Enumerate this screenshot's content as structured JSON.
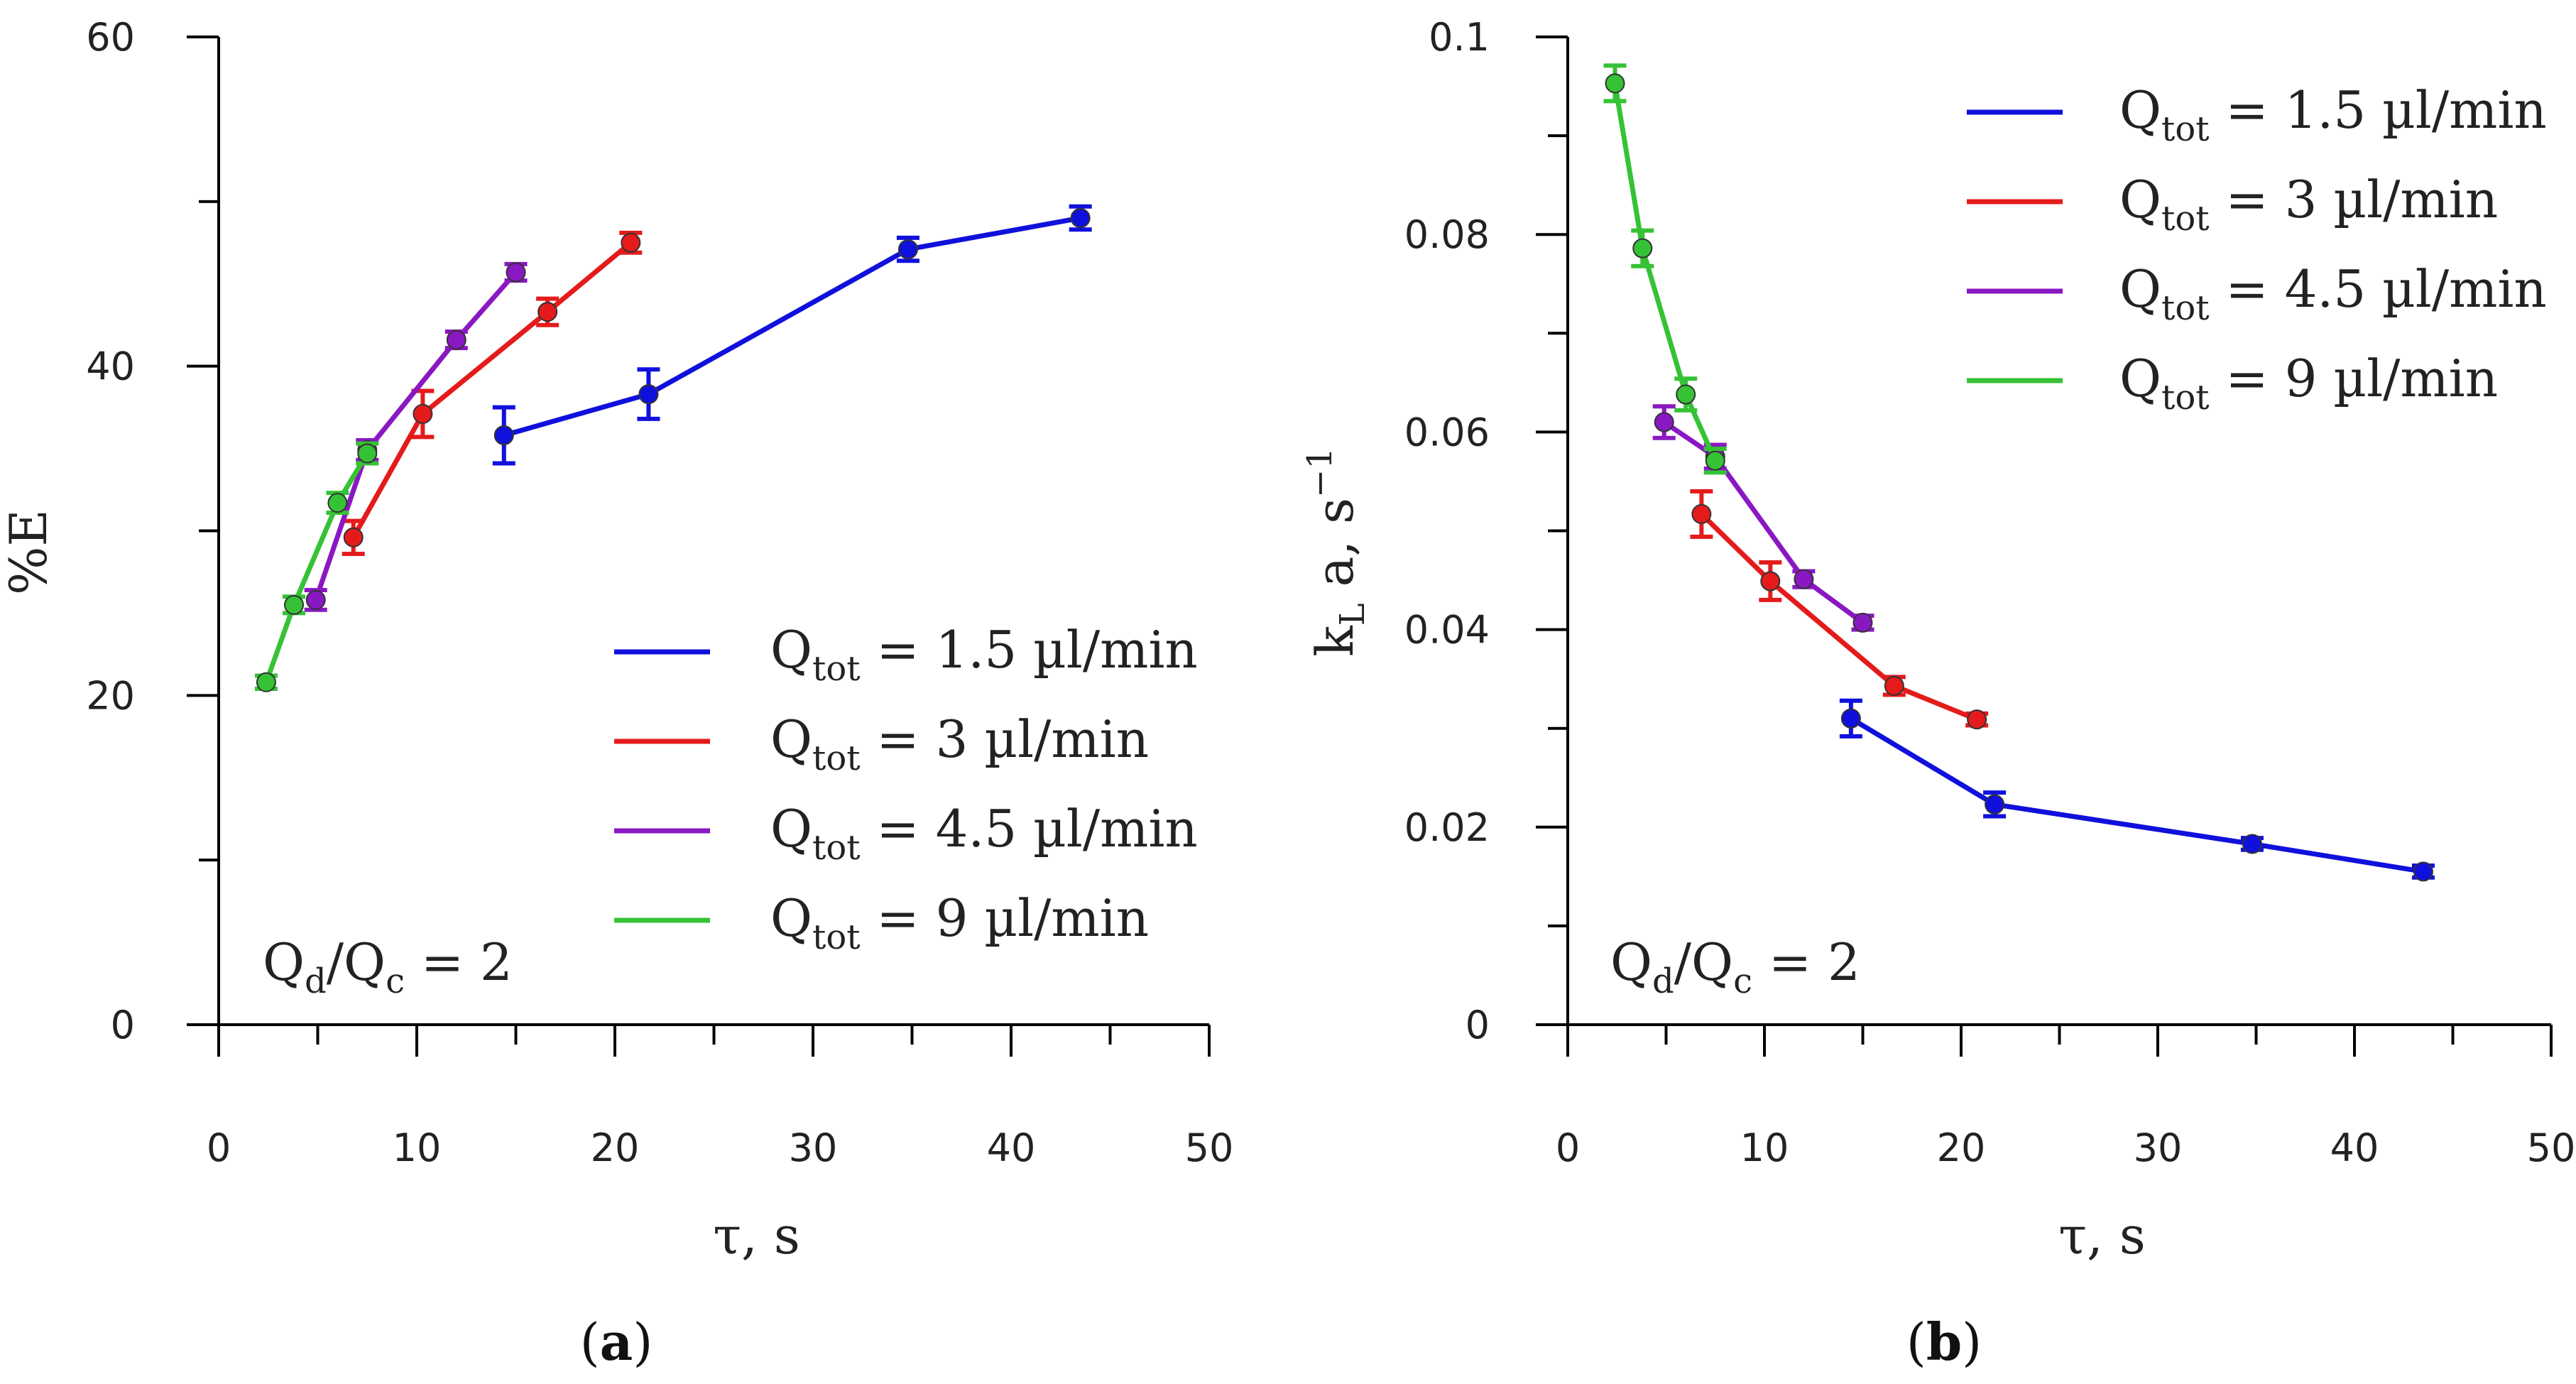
{
  "colors": {
    "blue": "#1010dd",
    "red": "#e51b1b",
    "purple": "#8a18c2",
    "green": "#35c235",
    "axis": "#000000"
  },
  "chart_data": [
    {
      "type": "line",
      "panel_label": "a",
      "xlabel": "τ, s",
      "ylabel": "%E",
      "xlim": [
        0,
        50
      ],
      "ylim": [
        0,
        60
      ],
      "x_ticks": [
        0,
        10,
        20,
        30,
        40,
        50
      ],
      "x_tick_labels": [
        "0",
        "10",
        "20",
        "30",
        "40",
        "50"
      ],
      "y_ticks": [
        0,
        20,
        40,
        60
      ],
      "y_tick_labels": [
        "0",
        "20",
        "40",
        "60"
      ],
      "annotation": {
        "main": "Q",
        "sub1": "d",
        "mid": "/Q",
        "sub2": "c",
        "tail": " = 2"
      },
      "legend_position": "bottom-right",
      "series": [
        {
          "name": "Qtot = 1.5 µl/min",
          "legend": {
            "q": "Q",
            "sub": "tot",
            "rest": " = 1.5 µl/min"
          },
          "color_key": "blue",
          "x": [
            14.4,
            21.7,
            34.8,
            43.5
          ],
          "y": [
            35.8,
            38.3,
            47.1,
            49.0
          ],
          "err": [
            1.7,
            1.5,
            0.7,
            0.7
          ]
        },
        {
          "name": "Qtot = 3 µl/min",
          "legend": {
            "q": "Q",
            "sub": "tot",
            "rest": " = 3 µl/min"
          },
          "color_key": "red",
          "x": [
            6.8,
            10.3,
            16.6,
            20.8
          ],
          "y": [
            29.6,
            37.1,
            43.3,
            47.5
          ],
          "err": [
            1.0,
            1.4,
            0.8,
            0.6
          ]
        },
        {
          "name": "Qtot = 4.5 µl/min",
          "legend": {
            "q": "Q",
            "sub": "tot",
            "rest": " = 4.5 µl/min"
          },
          "color_key": "purple",
          "x": [
            4.9,
            7.5,
            12.0,
            15.0
          ],
          "y": [
            25.8,
            34.9,
            41.6,
            45.7
          ],
          "err": [
            0.6,
            0.6,
            0.5,
            0.5
          ]
        },
        {
          "name": "Qtot = 9 µl/min",
          "legend": {
            "q": "Q",
            "sub": "tot",
            "rest": " = 9 µl/min"
          },
          "color_key": "green",
          "x": [
            2.4,
            3.8,
            6.0,
            7.5
          ],
          "y": [
            20.8,
            25.5,
            31.7,
            34.7
          ],
          "err": [
            0.4,
            0.5,
            0.6,
            0.6
          ]
        }
      ]
    },
    {
      "type": "line",
      "panel_label": "b",
      "xlabel": "τ, s",
      "ylabel": {
        "main": "k",
        "sub": "L",
        "mid": " a, s",
        "sup": "−1"
      },
      "xlim": [
        0,
        50
      ],
      "ylim": [
        0,
        0.1
      ],
      "x_ticks": [
        0,
        10,
        20,
        30,
        40,
        50
      ],
      "x_tick_labels": [
        "0",
        "10",
        "20",
        "30",
        "40",
        "50"
      ],
      "y_ticks": [
        0,
        0.02,
        0.04,
        0.06,
        0.08,
        0.1
      ],
      "y_tick_labels": [
        "0",
        "0.02",
        "0.04",
        "0.06",
        "0.08",
        "0.1"
      ],
      "annotation": {
        "main": "Q",
        "sub1": "d",
        "mid": "/Q",
        "sub2": "c",
        "tail": " = 2"
      },
      "legend_position": "top-right",
      "series": [
        {
          "name": "Qtot = 1.5 µl/min",
          "legend": {
            "q": "Q",
            "sub": "tot",
            "rest": " = 1.5 µl/min"
          },
          "color_key": "blue",
          "x": [
            14.4,
            21.7,
            34.8,
            43.5
          ],
          "y": [
            0.031,
            0.0223,
            0.0183,
            0.0155
          ],
          "err": [
            0.0018,
            0.0012,
            0.0006,
            0.0006
          ]
        },
        {
          "name": "Qtot = 3 µl/min",
          "legend": {
            "q": "Q",
            "sub": "tot",
            "rest": " = 3 µl/min"
          },
          "color_key": "red",
          "x": [
            6.8,
            10.3,
            16.6,
            20.8
          ],
          "y": [
            0.0517,
            0.0449,
            0.0343,
            0.0309
          ],
          "err": [
            0.0023,
            0.0019,
            0.0009,
            0.0006
          ]
        },
        {
          "name": "Qtot = 4.5 µl/min",
          "legend": {
            "q": "Q",
            "sub": "tot",
            "rest": " = 4.5 µl/min"
          },
          "color_key": "purple",
          "x": [
            4.9,
            7.5,
            12.0,
            15.0
          ],
          "y": [
            0.061,
            0.0575,
            0.0451,
            0.0407
          ],
          "err": [
            0.0016,
            0.0012,
            0.0008,
            0.0007
          ]
        },
        {
          "name": "Qtot = 9 µl/min",
          "legend": {
            "q": "Q",
            "sub": "tot",
            "rest": " = 9 µl/min"
          },
          "color_key": "green",
          "x": [
            2.4,
            3.8,
            6.0,
            7.5
          ],
          "y": [
            0.0953,
            0.0786,
            0.0638,
            0.0571
          ],
          "err": [
            0.0018,
            0.0018,
            0.0016,
            0.0012
          ]
        }
      ]
    }
  ]
}
